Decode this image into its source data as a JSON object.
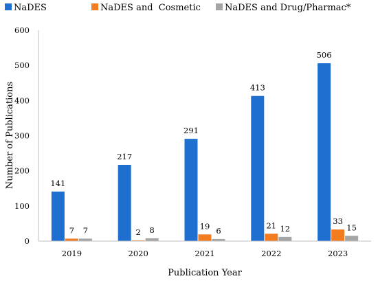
{
  "chart_data": {
    "type": "bar",
    "title": "",
    "xlabel": "Publication Year",
    "ylabel": "Number of Publications",
    "categories": [
      "2019",
      "2020",
      "2021",
      "2022",
      "2023"
    ],
    "series": [
      {
        "name": "NaDES",
        "color": "#1f6fd0",
        "values": [
          141,
          217,
          291,
          413,
          506
        ]
      },
      {
        "name": "NaDES and  Cosmetic",
        "color": "#f47c20",
        "values": [
          7,
          2,
          19,
          21,
          33
        ]
      },
      {
        "name": "NaDES and Drug/Pharmac*",
        "color": "#a5a5a5",
        "values": [
          7,
          8,
          6,
          12,
          15
        ]
      }
    ],
    "ylim": [
      0,
      600
    ],
    "yticks": [
      0,
      100,
      200,
      300,
      400,
      500,
      600
    ],
    "grid": false,
    "legend_position": "top",
    "data_labels": true
  }
}
